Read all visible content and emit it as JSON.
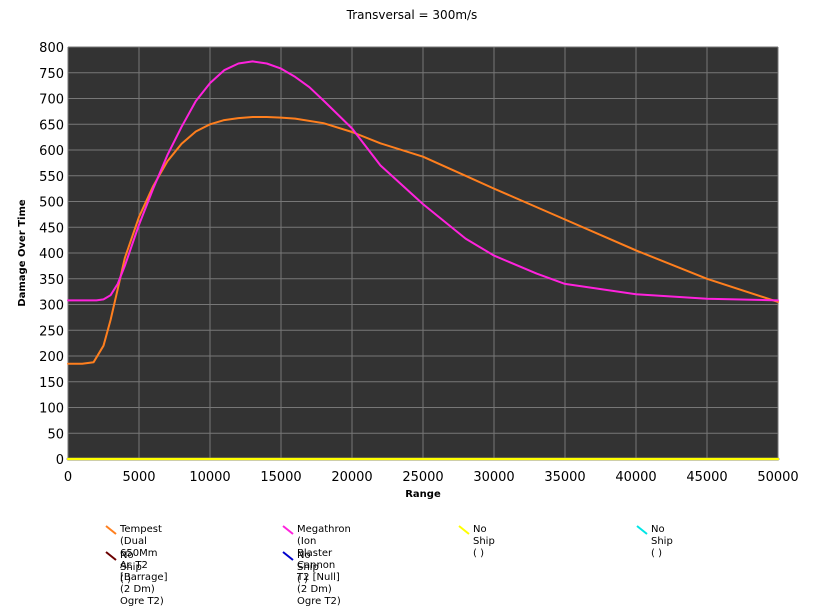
{
  "chart_data": {
    "type": "line",
    "title": "Transversal = 300m/s",
    "xlabel": "Range",
    "ylabel": "Damage Over Time",
    "xlim": [
      0,
      50000
    ],
    "ylim": [
      0,
      800
    ],
    "x_ticks": [
      "0",
      "5000",
      "10000",
      "15000",
      "20000",
      "25000",
      "30000",
      "35000",
      "40000",
      "45000",
      "50000"
    ],
    "y_ticks": [
      "0",
      "50",
      "100",
      "150",
      "200",
      "250",
      "300",
      "350",
      "400",
      "450",
      "500",
      "550",
      "600",
      "650",
      "700",
      "750",
      "800"
    ],
    "grid": true,
    "plot_background": "#333333",
    "grid_color": "#777777",
    "legend_position": "bottom",
    "series": [
      {
        "name": "Tempest (Dual 650Mm Ac T2\n[Barrage] (2 Dm) Ogre T2)",
        "color": "#ff7f1e",
        "x": [
          0,
          1000,
          1800,
          2500,
          3000,
          3500,
          4000,
          5000,
          6000,
          7000,
          8000,
          9000,
          10000,
          11000,
          12000,
          13000,
          14000,
          15000,
          16000,
          18000,
          20000,
          22000,
          25000,
          28000,
          30000,
          35000,
          40000,
          45000,
          50000
        ],
        "y": [
          185,
          185,
          188,
          220,
          270,
          330,
          390,
          470,
          530,
          578,
          612,
          636,
          650,
          658,
          662,
          664,
          664,
          663,
          661,
          652,
          635,
          613,
          587,
          550,
          525,
          465,
          405,
          350,
          305
        ]
      },
      {
        "name": "Megathron (Ion Blaster Cannon\nT2 [Null] (2 Dm) Ogre T2)",
        "color": "#ff22dd",
        "x": [
          0,
          2000,
          2500,
          3000,
          3500,
          4000,
          5000,
          6000,
          7000,
          8000,
          9000,
          10000,
          11000,
          12000,
          13000,
          14000,
          15000,
          16000,
          17000,
          18000,
          20000,
          22000,
          25000,
          28000,
          30000,
          33000,
          35000,
          40000,
          45000,
          50000
        ],
        "y": [
          308,
          308,
          310,
          318,
          340,
          375,
          455,
          525,
          590,
          645,
          695,
          730,
          755,
          768,
          772,
          768,
          758,
          742,
          722,
          696,
          642,
          570,
          495,
          428,
          395,
          360,
          340,
          320,
          311,
          308
        ]
      },
      {
        "name": "No Ship ( )",
        "color": "#ffff00",
        "x": [
          0,
          50000
        ],
        "y": [
          0,
          0
        ]
      },
      {
        "name": "No Ship ( )",
        "color": "#00e6e6",
        "x": [
          0,
          50000
        ],
        "y": [
          0,
          0
        ]
      },
      {
        "name": "No Ship ( )",
        "color": "#6b0000",
        "x": [
          0,
          50000
        ],
        "y": [
          0,
          0
        ]
      },
      {
        "name": "No Ship ( )",
        "color": "#0000cc",
        "x": [
          0,
          50000
        ],
        "y": [
          0,
          0
        ]
      }
    ]
  }
}
